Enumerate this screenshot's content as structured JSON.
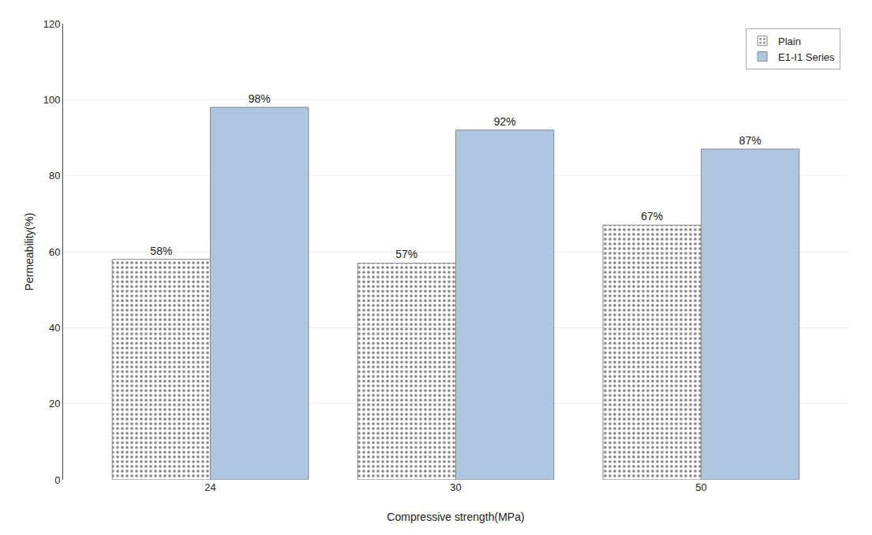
{
  "chart_data": {
    "type": "bar",
    "categories": [
      "24",
      "30",
      "50"
    ],
    "series": [
      {
        "name": "Plain",
        "color": "#ffffff",
        "values": [
          58,
          57,
          67
        ],
        "value_labels": [
          "58%",
          "57%",
          "67%"
        ]
      },
      {
        "name": "E1-I1 Series",
        "color": "#aec6e0",
        "values": [
          98,
          92,
          87
        ],
        "value_labels": [
          "98%",
          "92%",
          "87%"
        ]
      }
    ],
    "xlabel": "Compressive strength(MPa)",
    "ylabel": "Permeability(%)",
    "ylim": [
      0,
      120
    ],
    "yticks": [
      0,
      20,
      40,
      60,
      80,
      100,
      120
    ],
    "grid": true,
    "legend": "upper right",
    "data_labels": true
  }
}
